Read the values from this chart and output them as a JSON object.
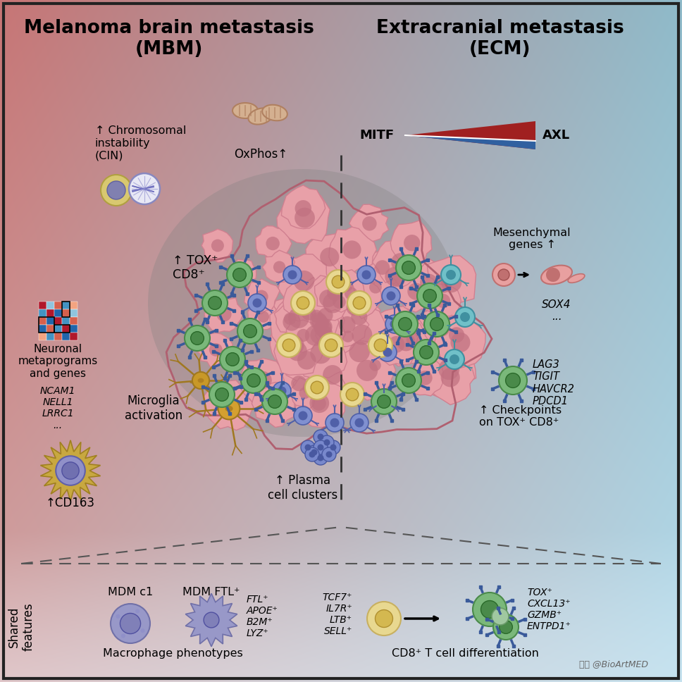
{
  "title_left": "Melanoma brain metastasis\n(MBM)",
  "title_right": "Extracranial metastasis\n(ECM)",
  "watermark": "头条 @BioArtMED"
}
